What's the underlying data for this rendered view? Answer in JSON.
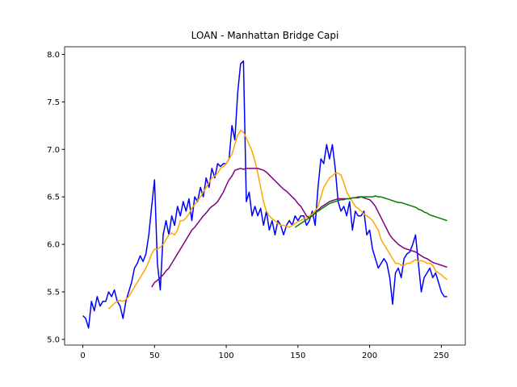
{
  "chart_data": {
    "type": "line",
    "title": "LOAN - Manhattan Bridge Capi",
    "x": [
      0,
      2,
      4,
      6,
      8,
      10,
      12,
      14,
      16,
      18,
      20,
      22,
      24,
      26,
      28,
      30,
      32,
      34,
      36,
      38,
      40,
      42,
      44,
      46,
      48,
      50,
      52,
      54,
      56,
      58,
      60,
      62,
      64,
      66,
      68,
      70,
      72,
      74,
      76,
      78,
      80,
      82,
      84,
      86,
      88,
      90,
      92,
      94,
      96,
      98,
      100,
      102,
      104,
      106,
      108,
      110,
      112,
      114,
      116,
      118,
      120,
      122,
      124,
      126,
      128,
      130,
      132,
      134,
      136,
      138,
      140,
      142,
      144,
      146,
      148,
      150,
      152,
      154,
      156,
      158,
      160,
      162,
      164,
      166,
      168,
      170,
      172,
      174,
      176,
      178,
      180,
      182,
      184,
      186,
      188,
      190,
      192,
      194,
      196,
      198,
      200,
      202,
      204,
      206,
      208,
      210,
      212,
      214,
      216,
      218,
      220,
      222,
      224,
      226,
      228,
      230,
      232,
      234,
      236,
      238,
      240,
      242,
      244,
      246,
      248,
      250,
      252,
      254
    ],
    "series": [
      {
        "color": "blue",
        "values": [
          5.25,
          5.22,
          5.12,
          5.4,
          5.3,
          5.45,
          5.35,
          5.4,
          5.4,
          5.5,
          5.45,
          5.52,
          5.4,
          5.35,
          5.22,
          5.4,
          5.5,
          5.6,
          5.75,
          5.8,
          5.88,
          5.82,
          5.9,
          6.1,
          6.4,
          6.68,
          5.8,
          5.52,
          6.1,
          6.25,
          6.1,
          6.3,
          6.2,
          6.4,
          6.3,
          6.45,
          6.35,
          6.48,
          6.25,
          6.5,
          6.45,
          6.6,
          6.5,
          6.7,
          6.6,
          6.8,
          6.7,
          6.85,
          6.82,
          6.85,
          6.85,
          6.9,
          7.25,
          7.1,
          7.6,
          7.9,
          7.93,
          6.45,
          6.55,
          6.3,
          6.4,
          6.3,
          6.38,
          6.2,
          6.35,
          6.15,
          6.25,
          6.1,
          6.25,
          6.2,
          6.1,
          6.2,
          6.25,
          6.2,
          6.3,
          6.25,
          6.3,
          6.3,
          6.2,
          6.25,
          6.35,
          6.2,
          6.6,
          6.9,
          6.85,
          7.05,
          6.9,
          7.05,
          6.8,
          6.45,
          6.35,
          6.4,
          6.3,
          6.45,
          6.15,
          6.35,
          6.3,
          6.3,
          6.35,
          6.1,
          6.15,
          5.95,
          5.85,
          5.75,
          5.8,
          5.85,
          5.8,
          5.65,
          5.37,
          5.7,
          5.75,
          5.65,
          5.85,
          5.9,
          5.92,
          6.0,
          6.1,
          5.8,
          5.5,
          5.65,
          5.7,
          5.75,
          5.65,
          5.7,
          5.6,
          5.5,
          5.45,
          5.45
        ]
      },
      {
        "color": "orange",
        "values": [
          null,
          null,
          null,
          null,
          null,
          null,
          null,
          null,
          null,
          5.32,
          5.35,
          5.38,
          5.4,
          5.41,
          5.4,
          5.42,
          5.45,
          5.5,
          5.55,
          5.6,
          5.65,
          5.7,
          5.75,
          5.82,
          5.9,
          5.95,
          5.95,
          5.97,
          6.0,
          6.05,
          6.1,
          6.12,
          6.1,
          6.15,
          6.25,
          6.25,
          6.28,
          6.32,
          6.38,
          6.42,
          6.46,
          6.5,
          6.55,
          6.6,
          6.65,
          6.7,
          6.72,
          6.75,
          6.8,
          6.82,
          6.85,
          6.9,
          6.95,
          7.05,
          7.15,
          7.2,
          7.18,
          7.12,
          7.05,
          6.98,
          6.88,
          6.75,
          6.6,
          6.45,
          6.35,
          6.3,
          6.27,
          6.25,
          6.22,
          6.2,
          6.2,
          6.19,
          6.18,
          6.2,
          6.22,
          6.24,
          6.25,
          6.27,
          6.28,
          6.3,
          6.32,
          6.35,
          6.4,
          6.5,
          6.6,
          6.65,
          6.7,
          6.72,
          6.75,
          6.75,
          6.73,
          6.65,
          6.55,
          6.5,
          6.45,
          6.4,
          6.38,
          6.35,
          6.32,
          6.3,
          6.28,
          6.25,
          6.2,
          6.15,
          6.05,
          6.0,
          5.95,
          5.9,
          5.85,
          5.8,
          5.8,
          5.78,
          5.78,
          5.8,
          5.8,
          5.82,
          5.84,
          5.82,
          5.83,
          5.82,
          5.8,
          5.8,
          5.78,
          5.72,
          5.7,
          5.68,
          5.65,
          5.63
        ]
      },
      {
        "color": "purple",
        "values": [
          null,
          null,
          null,
          null,
          null,
          null,
          null,
          null,
          null,
          null,
          null,
          null,
          null,
          null,
          null,
          null,
          null,
          null,
          null,
          null,
          null,
          null,
          null,
          null,
          5.55,
          5.6,
          5.62,
          5.65,
          5.68,
          5.72,
          5.75,
          5.8,
          5.85,
          5.9,
          5.95,
          6.0,
          6.05,
          6.1,
          6.15,
          6.18,
          6.22,
          6.26,
          6.3,
          6.33,
          6.37,
          6.4,
          6.42,
          6.45,
          6.5,
          6.55,
          6.62,
          6.68,
          6.72,
          6.78,
          6.79,
          6.8,
          6.79,
          6.8,
          6.8,
          6.8,
          6.8,
          6.8,
          6.79,
          6.78,
          6.76,
          6.73,
          6.7,
          6.67,
          6.64,
          6.61,
          6.58,
          6.56,
          6.53,
          6.5,
          6.47,
          6.43,
          6.4,
          6.35,
          6.3,
          6.28,
          6.3,
          6.33,
          6.36,
          6.39,
          6.41,
          6.43,
          6.45,
          6.46,
          6.47,
          6.48,
          6.48,
          6.48,
          6.48,
          6.48,
          6.49,
          6.49,
          6.5,
          6.5,
          6.49,
          6.48,
          6.47,
          6.44,
          6.4,
          6.34,
          6.28,
          6.22,
          6.16,
          6.1,
          6.06,
          6.03,
          6.0,
          5.98,
          5.96,
          5.95,
          5.94,
          5.93,
          5.92,
          5.9,
          5.88,
          5.86,
          5.85,
          5.83,
          5.81,
          5.8,
          5.79,
          5.78,
          5.77,
          5.76
        ]
      },
      {
        "color": "green",
        "values": [
          null,
          null,
          null,
          null,
          null,
          null,
          null,
          null,
          null,
          null,
          null,
          null,
          null,
          null,
          null,
          null,
          null,
          null,
          null,
          null,
          null,
          null,
          null,
          null,
          null,
          null,
          null,
          null,
          null,
          null,
          null,
          null,
          null,
          null,
          null,
          null,
          null,
          null,
          null,
          null,
          null,
          null,
          null,
          null,
          null,
          null,
          null,
          null,
          null,
          null,
          null,
          null,
          null,
          null,
          null,
          null,
          null,
          null,
          null,
          null,
          null,
          null,
          null,
          null,
          null,
          null,
          null,
          null,
          null,
          null,
          null,
          null,
          null,
          null,
          6.18,
          6.2,
          6.22,
          6.24,
          6.26,
          6.28,
          6.3,
          6.33,
          6.35,
          6.37,
          6.39,
          6.41,
          6.43,
          6.44,
          6.45,
          6.46,
          6.47,
          6.47,
          6.48,
          6.48,
          6.49,
          6.49,
          6.49,
          6.5,
          6.5,
          6.5,
          6.5,
          6.5,
          6.51,
          6.5,
          6.5,
          6.49,
          6.48,
          6.47,
          6.46,
          6.45,
          6.44,
          6.44,
          6.43,
          6.42,
          6.41,
          6.4,
          6.39,
          6.37,
          6.36,
          6.34,
          6.33,
          6.31,
          6.3,
          6.29,
          6.28,
          6.27,
          6.26,
          6.25
        ]
      }
    ],
    "xlim": [
      -12.7,
      266.7
    ],
    "ylim": [
      4.94,
      8.08
    ],
    "xticks": [
      0,
      50,
      100,
      150,
      200,
      250
    ],
    "yticks": [
      {
        "value": 5,
        "label": "5.0"
      },
      5.5,
      {
        "value": 6,
        "label": "6.0"
      },
      6.5,
      {
        "value": 7,
        "label": "7.0"
      },
      7.5,
      {
        "value": 8,
        "label": "8.0"
      }
    ]
  }
}
